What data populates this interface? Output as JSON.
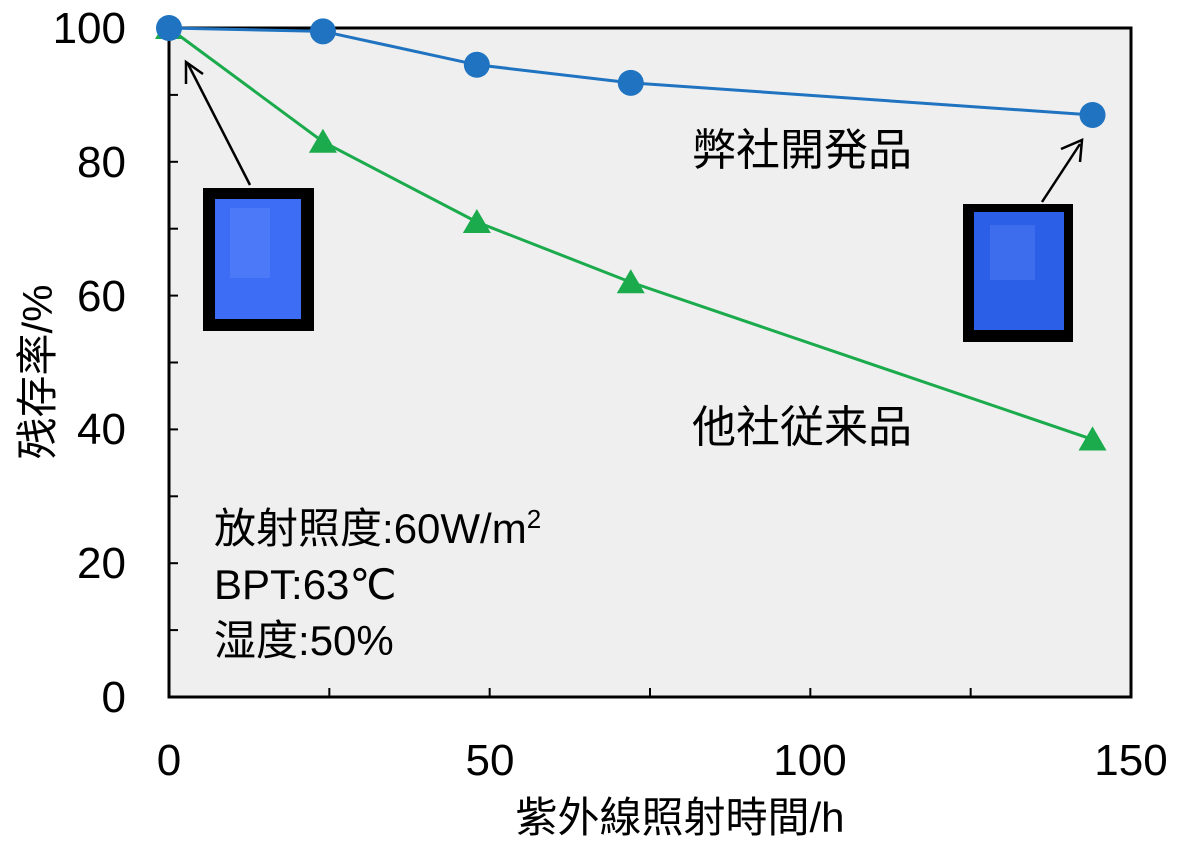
{
  "chart_data": {
    "type": "line",
    "xlabel": "紫外線照射時間/h",
    "ylabel": "残存率/%",
    "xlim": [
      0,
      150
    ],
    "ylim": [
      0,
      100
    ],
    "x_ticks": [
      "0",
      "50",
      "100",
      "150"
    ],
    "y_ticks": [
      "0",
      "20",
      "40",
      "60",
      "80",
      "100"
    ],
    "x": [
      0,
      24,
      48,
      72,
      144
    ],
    "series": [
      {
        "name": "弊社開発品",
        "marker": "circle",
        "color": "#1f73c0",
        "values": [
          100,
          99.5,
          94.5,
          91.8,
          87
        ]
      },
      {
        "name": "他社従来品",
        "marker": "triangle",
        "color": "#1bab4c",
        "values": [
          100,
          83,
          71,
          62,
          38.5
        ]
      }
    ],
    "grid": false,
    "plot_background": "#efefef",
    "conditions": {
      "irradiance_label": "放射照度",
      "irradiance_value": "60W/m",
      "irradiance_sup": "2",
      "bpt_label": "BPT",
      "bpt_value": "63℃",
      "humidity_label": "湿度",
      "humidity_value": "50%"
    },
    "sample_photo_color": "#3d6cf5"
  }
}
